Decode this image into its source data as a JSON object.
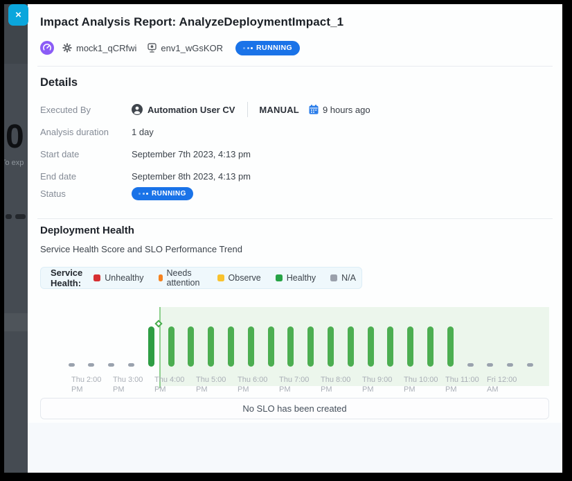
{
  "page_background": {
    "big_number": "0",
    "partial_text": "To exp"
  },
  "modal": {
    "title": "Impact Analysis Report: AnalyzeDeploymentImpact_1",
    "close_label": "×",
    "meta": {
      "service_name": "mock1_qCRfwi",
      "environment_name": "env1_wGsKOR",
      "status": "RUNNING"
    },
    "details": {
      "heading": "Details",
      "executed_by_label": "Executed By",
      "executed_by_user": "Automation User CV",
      "trigger_type": "MANUAL",
      "executed_time_ago": "9 hours ago",
      "duration_label": "Analysis duration",
      "duration_value": "1 day",
      "start_label": "Start date",
      "start_value": "September 7th 2023, 4:13 pm",
      "end_label": "End date",
      "end_value": "September 8th 2023, 4:13 pm",
      "status_label": "Status",
      "status_value": "RUNNING"
    },
    "deployment_health": {
      "heading": "Deployment Health",
      "subtitle": "Service Health Score and SLO Performance Trend",
      "legend_title": "Service Health:",
      "legend_items": [
        {
          "label": "Unhealthy",
          "color": "#d63032"
        },
        {
          "label": "Needs attention",
          "color": "#f6821f"
        },
        {
          "label": "Observe",
          "color": "#f9c32e"
        },
        {
          "label": "Healthy",
          "color": "#27a346"
        },
        {
          "label": "N/A",
          "color": "#9aa0ab"
        }
      ],
      "slo_message": "No SLO has been created"
    }
  },
  "chart_data": {
    "type": "bar",
    "title": "Service Health Score and SLO Performance Trend",
    "legend_position": "top",
    "grid": false,
    "y_axis": "hidden (categorical health status, bar = Healthy, dash = N/A)",
    "deployment_marker_time": "Thu 4:13 PM",
    "analysis_window": {
      "from": "Thu 4:13 PM",
      "to": "chart end"
    },
    "slots": [
      {
        "time": "Thu 2:00 PM",
        "status": "na"
      },
      {
        "time": "Thu 2:30 PM",
        "status": "na"
      },
      {
        "time": "Thu 3:00 PM",
        "status": "na"
      },
      {
        "time": "Thu 3:30 PM",
        "status": "na"
      },
      {
        "time": "Thu 4:00 PM",
        "status": "healthy",
        "emphasis": true
      },
      {
        "time": "Thu 4:30 PM",
        "status": "healthy"
      },
      {
        "time": "Thu 5:00 PM",
        "status": "healthy"
      },
      {
        "time": "Thu 5:30 PM",
        "status": "healthy"
      },
      {
        "time": "Thu 6:00 PM",
        "status": "healthy"
      },
      {
        "time": "Thu 6:30 PM",
        "status": "healthy"
      },
      {
        "time": "Thu 7:00 PM",
        "status": "healthy"
      },
      {
        "time": "Thu 7:30 PM",
        "status": "healthy"
      },
      {
        "time": "Thu 8:00 PM",
        "status": "healthy"
      },
      {
        "time": "Thu 8:30 PM",
        "status": "healthy"
      },
      {
        "time": "Thu 9:00 PM",
        "status": "healthy"
      },
      {
        "time": "Thu 9:30 PM",
        "status": "healthy"
      },
      {
        "time": "Thu 10:00 PM",
        "status": "healthy"
      },
      {
        "time": "Thu 10:30 PM",
        "status": "healthy"
      },
      {
        "time": "Thu 11:00 PM",
        "status": "healthy"
      },
      {
        "time": "Thu 11:30 PM",
        "status": "healthy"
      },
      {
        "time": "Fri 12:00 AM",
        "status": "na"
      },
      {
        "time": "Fri 12:30 AM",
        "status": "na"
      },
      {
        "time": "Fri 1:00 AM",
        "status": "na"
      },
      {
        "time": "Fri 1:30 AM",
        "status": "na"
      }
    ],
    "hour_labels": [
      {
        "line1": "Thu 2:00",
        "line2": "PM"
      },
      {
        "line1": "Thu 3:00",
        "line2": "PM"
      },
      {
        "line1": "Thu 4:00",
        "line2": "PM"
      },
      {
        "line1": "Thu 5:00",
        "line2": "PM"
      },
      {
        "line1": "Thu 6:00",
        "line2": "PM"
      },
      {
        "line1": "Thu 7:00",
        "line2": "PM"
      },
      {
        "line1": "Thu 8:00",
        "line2": "PM"
      },
      {
        "line1": "Thu 9:00",
        "line2": "PM"
      },
      {
        "line1": "Thu 10:00",
        "line2": "PM"
      },
      {
        "line1": "Thu 11:00",
        "line2": "PM"
      },
      {
        "line1": "Fri 12:00",
        "line2": "AM"
      }
    ],
    "colors": {
      "healthy": "#4cae51",
      "healthy_emphasis": "#2f9e44",
      "na": "#9aa2ae",
      "marker_line": "#8ed08e",
      "window_fill": "#ecf6ec"
    }
  }
}
